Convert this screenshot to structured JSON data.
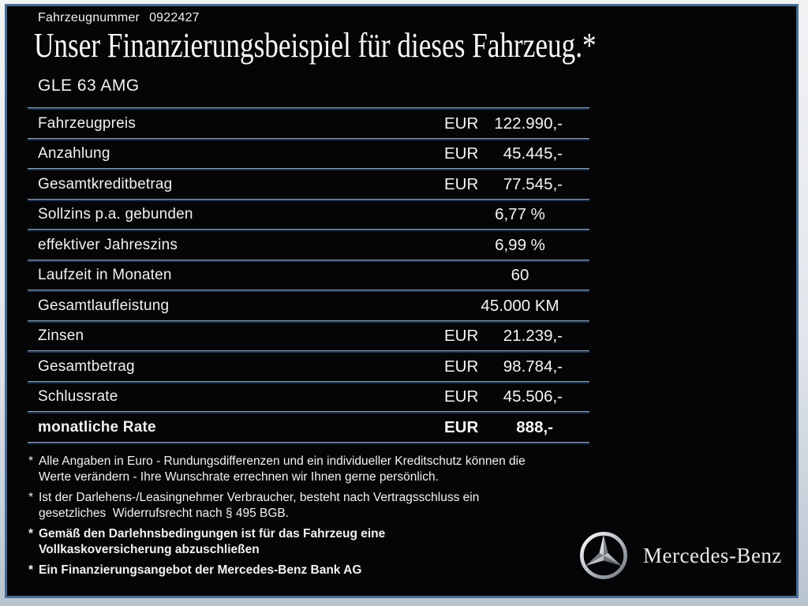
{
  "header": {
    "vehicle_number_label": "Fahrzeugnummer",
    "vehicle_number": "0922427",
    "title": "Unser Finanzierungsbeispiel für dieses Fahrzeug.*",
    "model": "GLE 63 AMG"
  },
  "table": {
    "rows": [
      {
        "label": "Fahrzeugpreis",
        "currency": "EUR",
        "value": "122.990,-",
        "bold": false
      },
      {
        "label": "Anzahlung",
        "currency": "EUR",
        "value": "45.445,-",
        "bold": false
      },
      {
        "label": "Gesamtkreditbetrag",
        "currency": "EUR",
        "value": "77.545,-",
        "bold": false
      },
      {
        "label": "Sollzins p.a. gebunden",
        "currency": "",
        "value": "6,77 %",
        "bold": false
      },
      {
        "label": "effektiver Jahreszins",
        "currency": "",
        "value": "6,99 %",
        "bold": false
      },
      {
        "label": "Laufzeit in Monaten",
        "currency": "",
        "value": "60",
        "bold": false
      },
      {
        "label": "Gesamtlaufleistung",
        "currency": "",
        "value": "45.000 KM",
        "bold": false
      },
      {
        "label": "Zinsen",
        "currency": "EUR",
        "value": "21.239,-",
        "bold": false
      },
      {
        "label": "Gesamtbetrag",
        "currency": "EUR",
        "value": "98.784,-",
        "bold": false
      },
      {
        "label": "Schlussrate",
        "currency": "EUR",
        "value": "45.506,-",
        "bold": false
      },
      {
        "label": "monatliche Rate",
        "currency": "EUR",
        "value": "888,-",
        "bold": true
      }
    ]
  },
  "footnotes": [
    {
      "marker": "*",
      "bold": false,
      "lines": [
        "Alle Angaben in Euro - Rundungsdifferenzen und ein individueller Kreditschutz können die",
        "Werte verändern - Ihre Wunschrate errechnen wir Ihnen gerne persönlich."
      ]
    },
    {
      "marker": "*",
      "bold": false,
      "lines": [
        "Ist der Darlehens-/Leasingnehmer Verbraucher, besteht nach Vertragsschluss ein",
        "gesetzliches  Widerrufsrecht nach § 495 BGB."
      ]
    },
    {
      "marker": "*",
      "bold": true,
      "lines": [
        "Gemäß den Darlehnsbedingungen ist für das Fahrzeug eine",
        "Vollkaskoversicherung abzuschließen"
      ]
    },
    {
      "marker": "*",
      "bold": true,
      "lines": [
        "Ein Finanzierungsangebot der Mercedes-Benz Bank AG"
      ]
    }
  ],
  "brand": {
    "name": "Mercedes-Benz",
    "logo": "mercedes-star-icon"
  },
  "colors": {
    "content_background": "#050507",
    "frame_border": "#486b93",
    "frame_outer_top": "#f1f2f4",
    "frame_outer_bottom": "#b9c4d1",
    "divider_navy": "#1d3557",
    "divider_gray": "#97a2ae",
    "text": "#f2f2f2"
  }
}
